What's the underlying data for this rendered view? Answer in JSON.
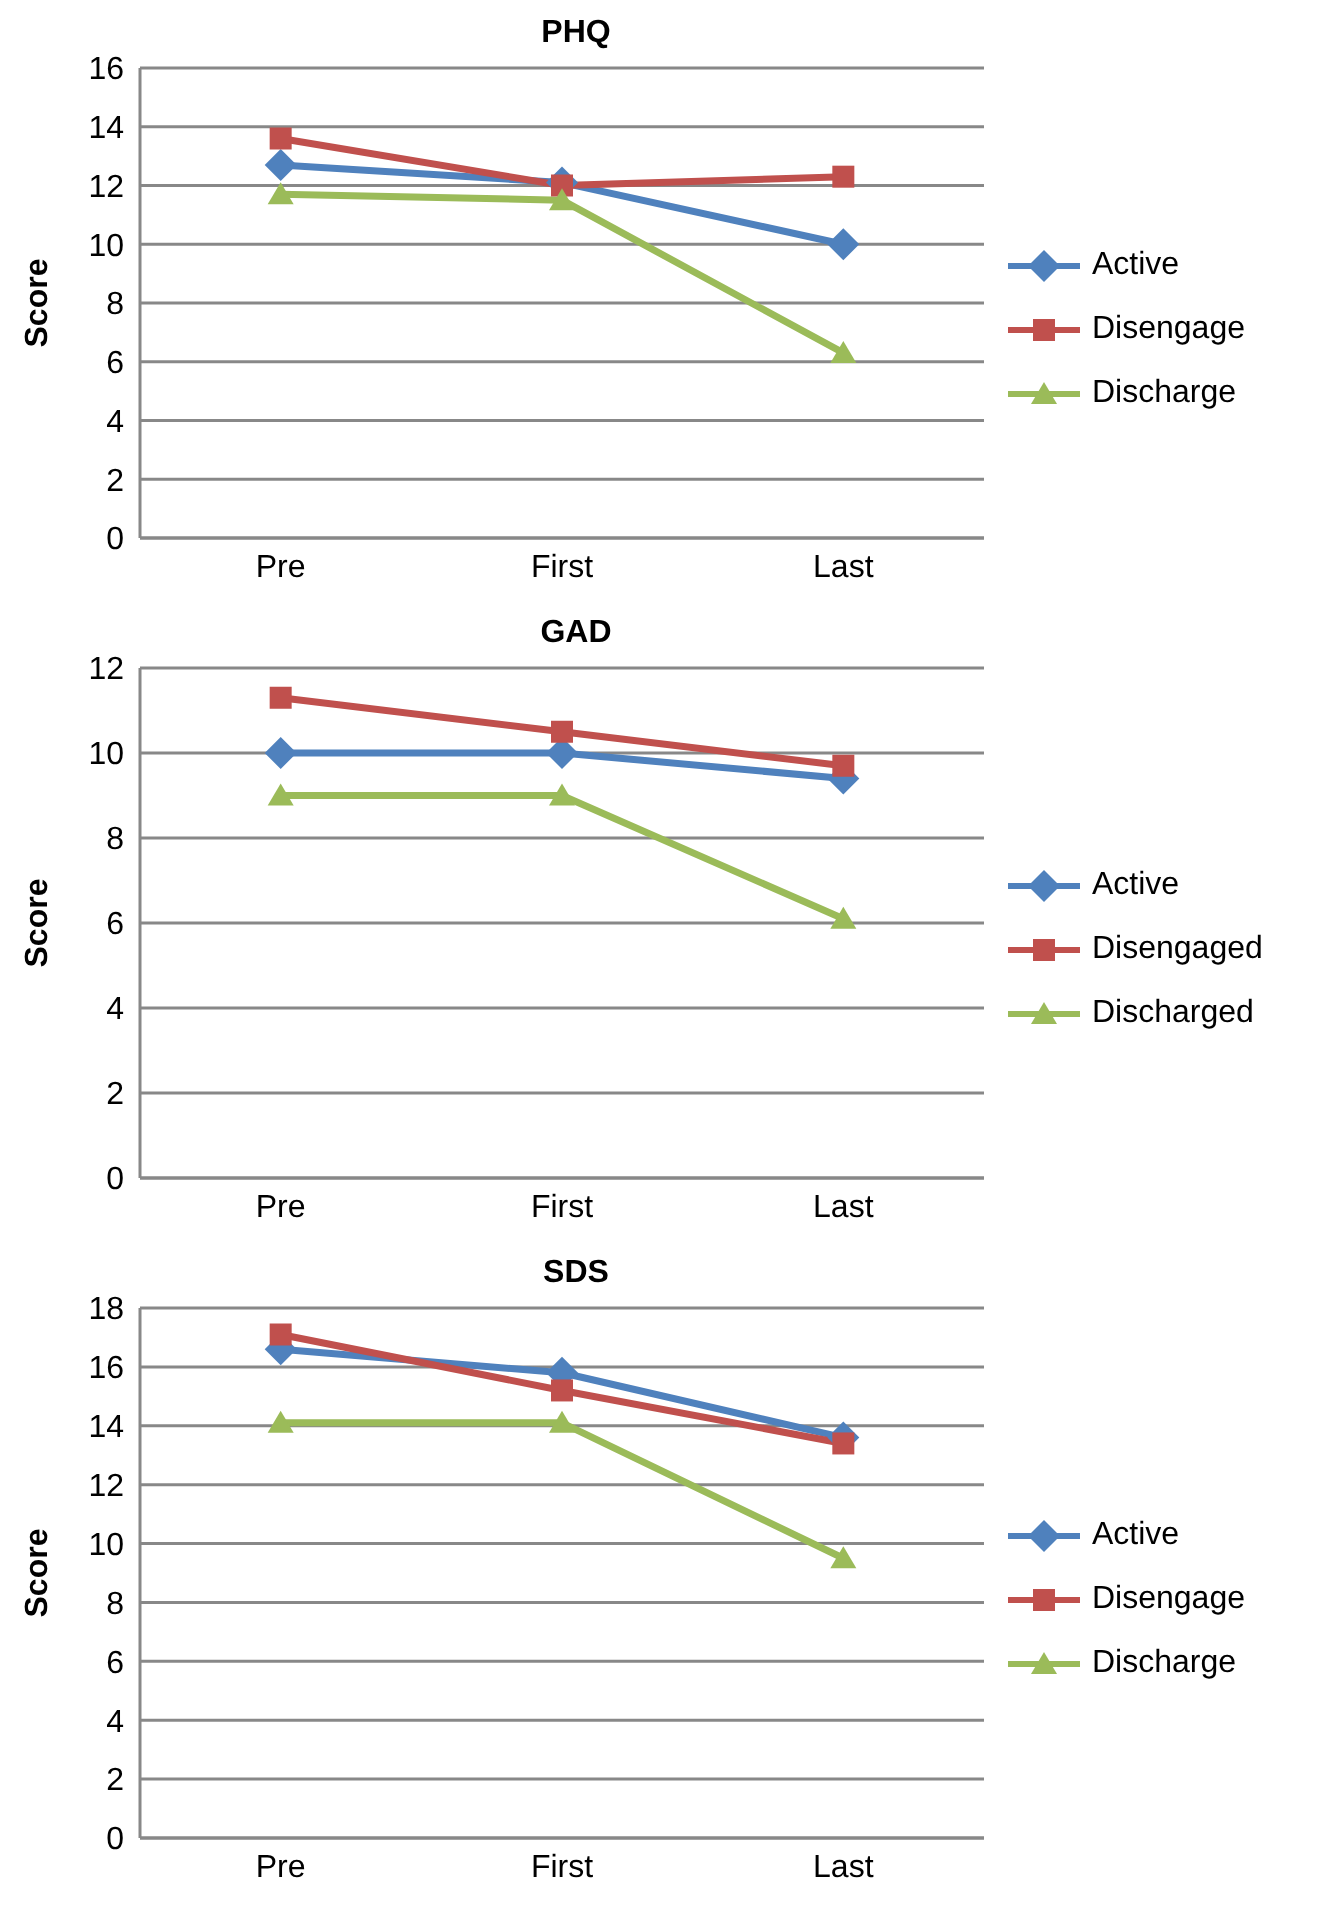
{
  "chart_data": [
    {
      "type": "line",
      "title": "PHQ",
      "ylabel": "Score",
      "categories": [
        "Pre",
        "First",
        "Last"
      ],
      "ylim": [
        0,
        16
      ],
      "yticks": [
        0,
        2,
        4,
        6,
        8,
        10,
        12,
        14,
        16
      ],
      "grid": "y",
      "legend": "right",
      "series": [
        {
          "name": "Active",
          "color": "#4f81bd",
          "marker": "diamond",
          "values": [
            12.7,
            12.1,
            10.0
          ]
        },
        {
          "name": "Disengage",
          "color": "#c0504d",
          "marker": "square",
          "values": [
            13.6,
            12.0,
            12.3
          ]
        },
        {
          "name": "Discharge",
          "color": "#9bbb59",
          "marker": "triangle",
          "values": [
            11.7,
            11.5,
            6.3
          ]
        }
      ]
    },
    {
      "type": "line",
      "title": "GAD",
      "ylabel": "Score",
      "categories": [
        "Pre",
        "First",
        "Last"
      ],
      "ylim": [
        0,
        12
      ],
      "yticks": [
        0,
        2,
        4,
        6,
        8,
        10,
        12
      ],
      "grid": "y",
      "legend": "right",
      "series": [
        {
          "name": "Active",
          "color": "#4f81bd",
          "marker": "diamond",
          "values": [
            10.0,
            10.0,
            9.4
          ]
        },
        {
          "name": "Disengaged",
          "color": "#c0504d",
          "marker": "square",
          "values": [
            11.3,
            10.5,
            9.7
          ]
        },
        {
          "name": "Discharged",
          "color": "#9bbb59",
          "marker": "triangle",
          "values": [
            9.0,
            9.0,
            6.1
          ]
        }
      ]
    },
    {
      "type": "line",
      "title": "SDS",
      "ylabel": "Score",
      "categories": [
        "Pre",
        "First",
        "Last"
      ],
      "ylim": [
        0,
        18
      ],
      "yticks": [
        0,
        2,
        4,
        6,
        8,
        10,
        12,
        14,
        16,
        18
      ],
      "grid": "y",
      "legend": "right",
      "series": [
        {
          "name": "Active",
          "color": "#4f81bd",
          "marker": "diamond",
          "values": [
            16.6,
            15.8,
            13.6
          ]
        },
        {
          "name": "Disengage",
          "color": "#c0504d",
          "marker": "square",
          "values": [
            17.1,
            15.2,
            13.4
          ]
        },
        {
          "name": "Discharge",
          "color": "#9bbb59",
          "marker": "triangle",
          "values": [
            14.1,
            14.1,
            9.5
          ]
        }
      ]
    }
  ]
}
